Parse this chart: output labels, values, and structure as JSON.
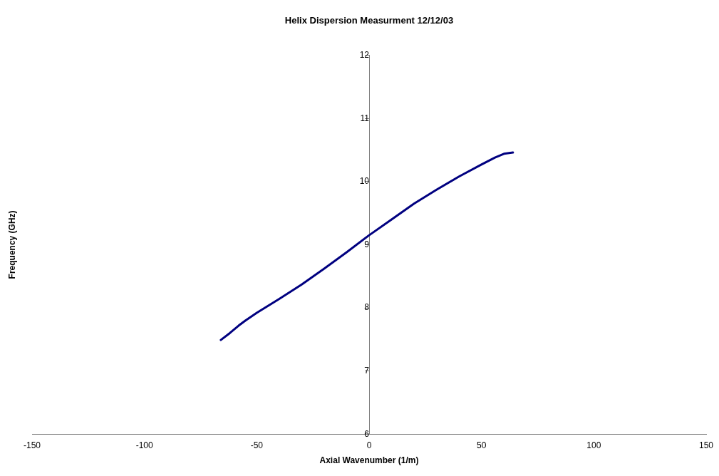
{
  "chart_data": {
    "type": "line",
    "title": "Helix Dispersion Measurment 12/12/03",
    "xlabel": "Axial Wavenumber (1/m)",
    "ylabel": "Frequency (GHz)",
    "xlim": [
      -150,
      150
    ],
    "xticks": [
      -150,
      -100,
      -50,
      0,
      50,
      100,
      150
    ],
    "ylim": [
      6,
      12
    ],
    "yticks": [
      6,
      7,
      8,
      9,
      10,
      11,
      12
    ],
    "grid": false,
    "legend": false,
    "marker": "none",
    "line_style": "solid",
    "series": [
      {
        "color": "#000080",
        "x": [
          -66,
          -62,
          -58,
          -55,
          -50,
          -40,
          -30,
          -20,
          -10,
          0,
          10,
          20,
          30,
          40,
          50,
          56,
          60,
          64
        ],
        "values": [
          7.49,
          7.6,
          7.72,
          7.8,
          7.92,
          8.14,
          8.37,
          8.62,
          8.88,
          9.15,
          9.4,
          9.65,
          9.87,
          10.08,
          10.27,
          10.38,
          10.44,
          10.46
        ]
      }
    ]
  }
}
